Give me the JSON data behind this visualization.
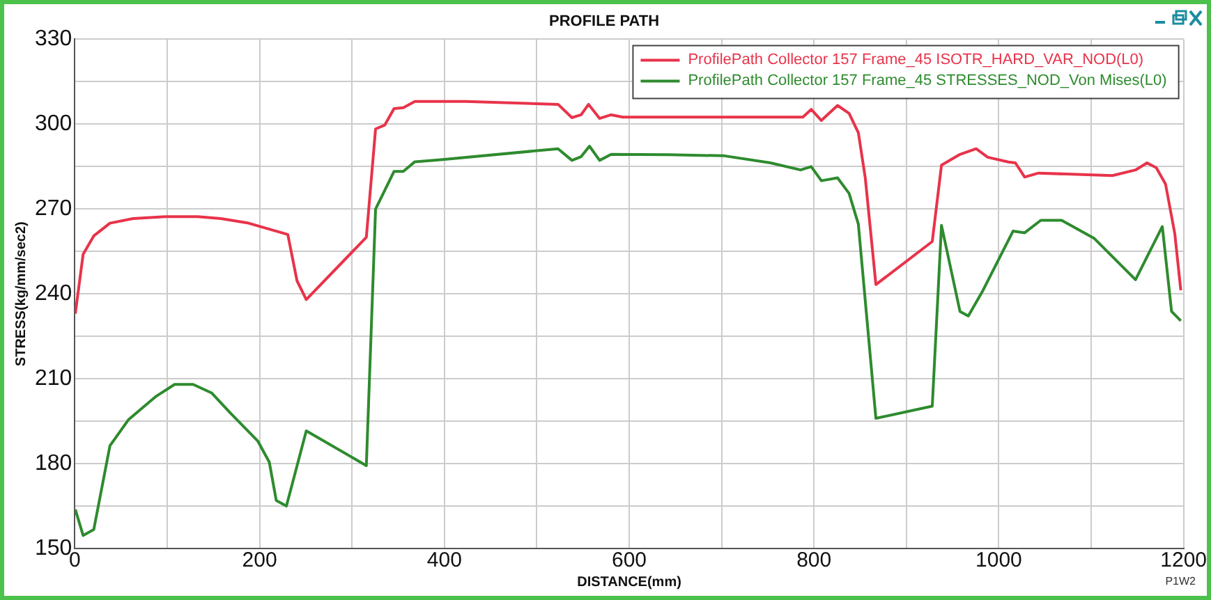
{
  "chart_data": {
    "type": "line",
    "title": "PROFILE PATH",
    "xlabel": "DISTANCE(mm)",
    "ylabel": "STRESS(kg/mm/sec2)",
    "annotations": [
      "P1W2"
    ],
    "xlim": [
      0,
      1200
    ],
    "xticks": [
      0,
      {
        "value": 100,
        "label": null
      },
      200,
      {
        "value": 300,
        "label": null
      },
      400,
      {
        "value": 500,
        "label": null
      },
      600,
      {
        "value": 700,
        "label": null
      },
      800,
      {
        "value": 900,
        "label": null
      },
      1000,
      {
        "value": 1100,
        "label": null
      },
      1200
    ],
    "ylim": [
      150,
      330
    ],
    "yticks": [
      150,
      {
        "value": 165,
        "label": null
      },
      180,
      {
        "value": 195,
        "label": null
      },
      210,
      {
        "value": 225,
        "label": null
      },
      240,
      {
        "value": 255,
        "label": null
      },
      270,
      {
        "value": 285,
        "label": null
      },
      300,
      {
        "value": 315,
        "label": null
      },
      330
    ],
    "grid": true,
    "legend": "top right",
    "marker": "none",
    "line_style": "solid",
    "series": [
      {
        "name": "ProfilePath Collector 157 Frame_45 ISOTR_HARD_VAR_NOD(L0)",
        "color": "#e8334a",
        "x": [
          0.5,
          9,
          20.5,
          38,
          63,
          98,
          133,
          158,
          188,
          230.5,
          240.5,
          250.5,
          315.5,
          325.5,
          335.5,
          345.5,
          355.5,
          368,
          423,
          523,
          538,
          548,
          556,
          568,
          580.5,
          593,
          788,
          797,
          808,
          825.5,
          838,
          848,
          855.5,
          867,
          928,
          938,
          958,
          975.5,
          988,
          1010.5,
          1018,
          1028,
          1043,
          1123,
          1148,
          1160.5,
          1170.5,
          1180.5,
          1190.5,
          1197
        ],
        "values": [
          233,
          254,
          260.5,
          265,
          266.6,
          267.3,
          267.3,
          266.6,
          265,
          261,
          244.6,
          238,
          260,
          298.3,
          299.7,
          305.5,
          305.8,
          308,
          308,
          307,
          302.3,
          303.3,
          307,
          302,
          303.3,
          302.5,
          302.5,
          305.2,
          301.3,
          306.6,
          303.8,
          297,
          281,
          243.3,
          258.5,
          285.5,
          289.3,
          291.3,
          288.3,
          286.6,
          286.3,
          281.3,
          282.7,
          281.8,
          283.8,
          286.3,
          284.6,
          278.8,
          261.3,
          241.3
        ]
      },
      {
        "name": "ProfilePath Collector 157 Frame_45 STRESSES_NOD_Von Mises(L0)",
        "color": "#2e8b2e",
        "x": [
          0.5,
          9,
          20.5,
          38,
          58,
          88,
          108,
          128,
          148,
          168,
          198,
          210.5,
          218,
          229,
          250.5,
          315.5,
          325.5,
          345.5,
          355.5,
          368,
          398,
          523,
          538,
          548,
          557,
          568,
          580.5,
          643,
          703,
          753,
          785.5,
          797,
          808,
          825.5,
          838,
          848,
          867,
          928,
          938,
          958,
          967,
          983,
          1015.5,
          1028,
          1045.5,
          1068,
          1103,
          1148,
          1177,
          1187,
          1197
        ],
        "values": [
          163.8,
          154.6,
          156.7,
          186.3,
          195.5,
          203.8,
          208,
          208,
          205,
          198,
          188,
          180.5,
          167,
          165,
          191.6,
          179.3,
          270,
          283.3,
          283.3,
          286.7,
          287.5,
          291.3,
          287.2,
          288.5,
          292.2,
          287.2,
          289.3,
          289.2,
          288.8,
          286.3,
          283.8,
          285,
          280,
          281,
          275.5,
          264.7,
          196,
          200.3,
          264.2,
          233.8,
          232.2,
          241.3,
          262.2,
          261.6,
          266,
          266,
          259.7,
          245,
          263.8,
          233.8,
          230.5
        ]
      }
    ]
  }
}
